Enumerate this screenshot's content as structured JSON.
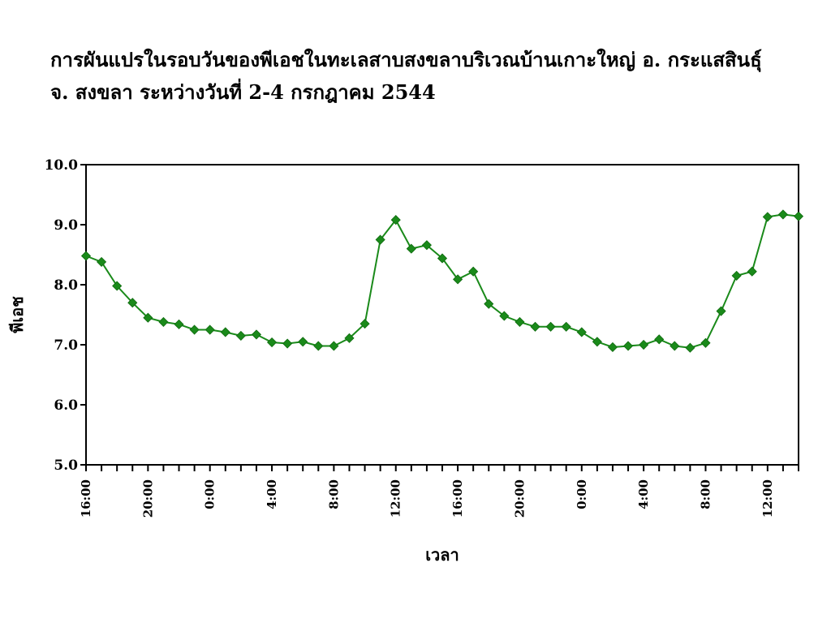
{
  "title_line1": "การผันแปรในรอบวันของพีเอชในทะเลสาบสงขลาบริเวณบ้านเกาะใหญ่ อ. กระแสสินธุ์",
  "title_line2": "จ. สงขลา ระหว่างวันที่ 2-4 กรกฎาคม 2544",
  "chart_data": {
    "type": "line",
    "xlabel": "เวลา",
    "ylabel": "พีเอช",
    "ylim": [
      5.0,
      10.0
    ],
    "yticks": [
      "10.0",
      "9.0",
      "8.0",
      "7.0",
      "6.0",
      "5.0"
    ],
    "xticks": [
      "16:00",
      "20:00",
      "0:00",
      "4:00",
      "8:00",
      "12:00",
      "16:00",
      "20:00",
      "0:00",
      "4:00",
      "8:00",
      "12:00"
    ],
    "x_interval_hours": 1,
    "line_color": "#1a8a1a",
    "marker": "diamond",
    "series": [
      {
        "values": [
          8.48,
          8.38,
          7.98,
          7.7,
          7.45,
          7.38,
          7.34,
          7.25,
          7.25,
          7.21,
          7.15,
          7.17,
          7.04,
          7.02,
          7.05,
          6.98,
          6.98,
          7.11,
          7.35,
          8.75,
          9.08,
          8.6,
          8.66,
          8.44,
          8.09,
          8.22,
          7.68,
          7.48,
          7.38,
          7.3,
          7.3,
          7.3,
          7.21,
          7.05,
          6.96,
          6.98,
          7.0,
          7.09,
          6.98,
          6.95,
          7.03,
          7.56,
          8.15,
          8.22,
          9.13,
          9.17,
          9.14
        ]
      }
    ]
  }
}
